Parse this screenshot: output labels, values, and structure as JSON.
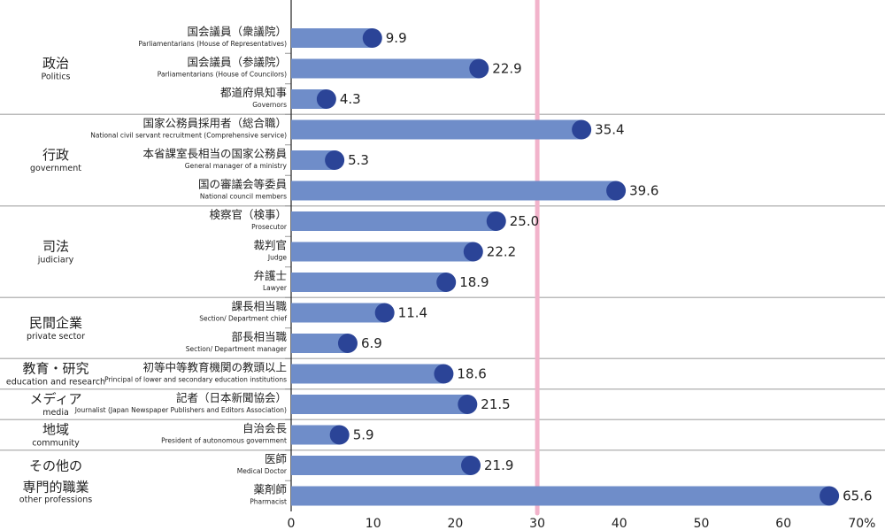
{
  "chart_data": {
    "type": "bar",
    "orientation": "horizontal",
    "xlim": [
      0,
      70
    ],
    "x_ticks": [
      "0",
      "10",
      "20",
      "30",
      "40",
      "50",
      "60",
      "70%"
    ],
    "reference_line": 30,
    "colors": {
      "bar": "#6f8dc9",
      "marker": "#2b4497",
      "reference": "#f2b3cb",
      "separator": "#bbbbbb"
    },
    "groups": [
      {
        "jp": "政治",
        "en": "Politics",
        "rows": [
          0,
          1,
          2
        ]
      },
      {
        "jp": "行政",
        "en": "government",
        "rows": [
          3,
          4,
          5
        ]
      },
      {
        "jp": "司法",
        "en": "judiciary",
        "rows": [
          6,
          7,
          8
        ]
      },
      {
        "jp": "民間企業",
        "en": "private sector",
        "rows": [
          9,
          10
        ]
      },
      {
        "jp": "教育・研究",
        "en": "education and research",
        "rows": [
          11
        ]
      },
      {
        "jp": "メディア",
        "en": "media",
        "rows": [
          12
        ]
      },
      {
        "jp": "地域",
        "en": "community",
        "rows": [
          13
        ]
      },
      {
        "jp": "その他の\n専門的職業",
        "jp_lines": [
          "その他の",
          "専門的職業"
        ],
        "en": "other professions",
        "rows": [
          14,
          15
        ]
      }
    ],
    "categories": [
      {
        "jp": "国会議員（衆議院）",
        "en": "Parliamentarians (House of Representatives)"
      },
      {
        "jp": "国会議員（参議院）",
        "en": "Parliamentarians (House of Councilors)"
      },
      {
        "jp": "都道府県知事",
        "en": "Governors"
      },
      {
        "jp": "国家公務員採用者（総合職）",
        "en": "National civil servant recruitment (Comprehensive service)"
      },
      {
        "jp": "本省課室長相当の国家公務員",
        "en": "General manager of a ministry"
      },
      {
        "jp": "国の審議会等委員",
        "en": "National council members"
      },
      {
        "jp": "検察官（検事）",
        "en": "Prosecutor"
      },
      {
        "jp": "裁判官",
        "en": "Judge"
      },
      {
        "jp": "弁護士",
        "en": "Lawyer"
      },
      {
        "jp": "課長相当職",
        "en": "Section/ Department chief"
      },
      {
        "jp": "部長相当職",
        "en": "Section/ Department manager"
      },
      {
        "jp": "初等中等教育機関の教頭以上",
        "en": "Principal of lower and secondary education institutions"
      },
      {
        "jp": "記者（日本新聞協会）",
        "en": "Journalist (Japan Newspaper Publishers and Editors Association)"
      },
      {
        "jp": "自治会長",
        "en": "President of autonomous government"
      },
      {
        "jp": "医師",
        "en": "Medical Doctor"
      },
      {
        "jp": "薬剤師",
        "en": "Pharmacist"
      }
    ],
    "values": [
      9.9,
      22.9,
      4.3,
      35.4,
      5.3,
      39.6,
      25.0,
      22.2,
      18.9,
      11.4,
      6.9,
      18.6,
      21.5,
      5.9,
      21.9,
      65.6
    ],
    "value_labels": [
      "9.9",
      "22.9",
      "4.3",
      "35.4",
      "5.3",
      "39.6",
      "25.0",
      "22.2",
      "18.9",
      "11.4",
      "6.9",
      "18.6",
      "21.5",
      "5.9",
      "21.9",
      "65.6"
    ]
  }
}
